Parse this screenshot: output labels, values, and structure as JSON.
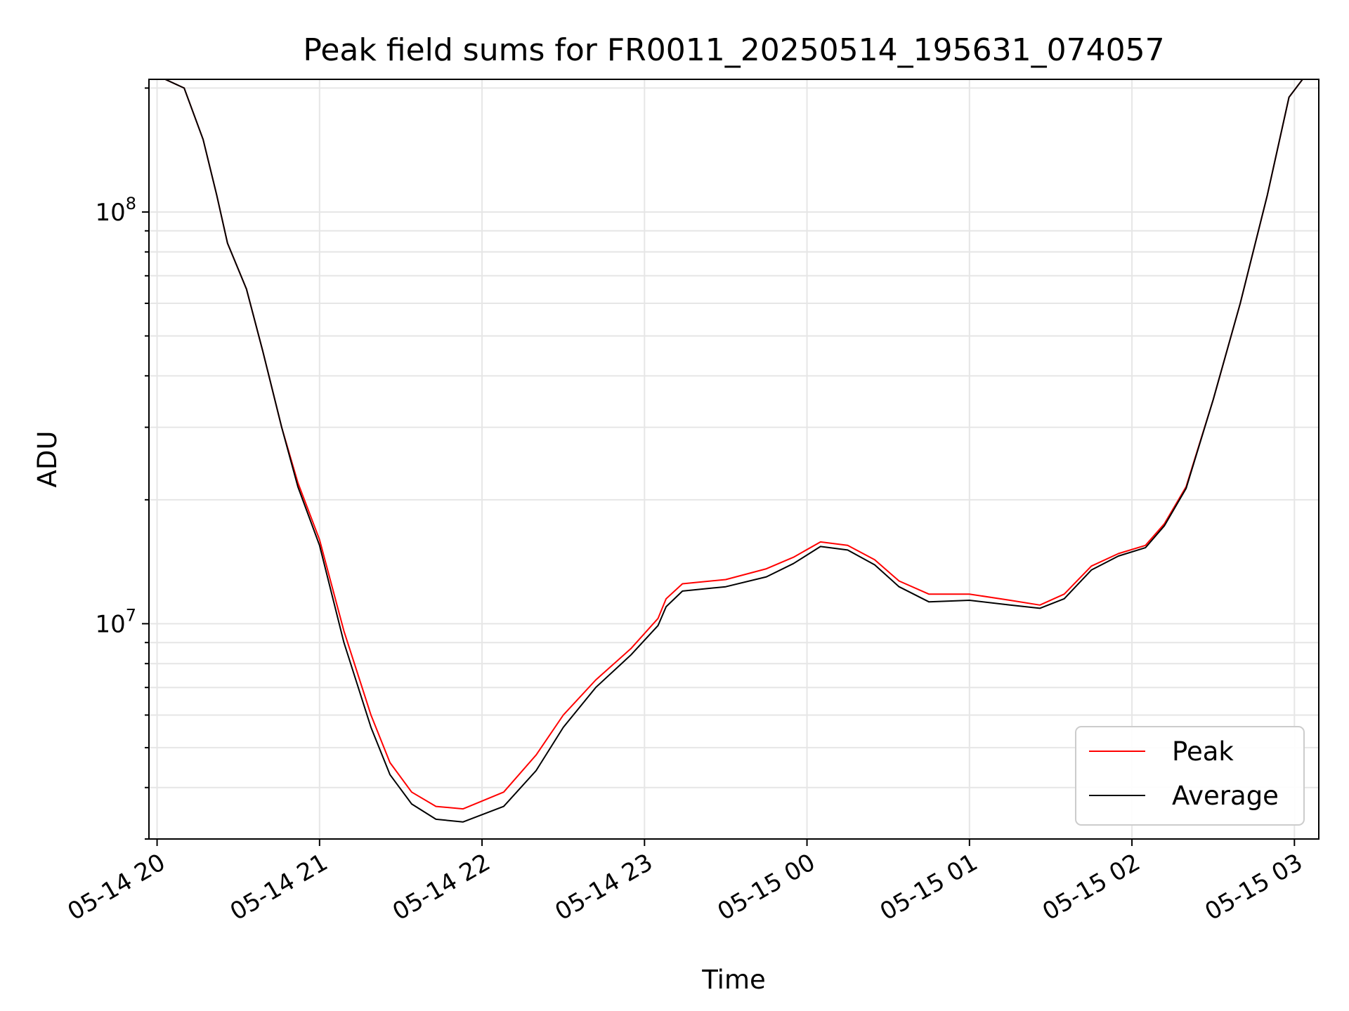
{
  "chart_data": {
    "type": "line",
    "title": "Peak field sums for FR0011_20250514_195631_074057",
    "xlabel": "Time",
    "ylabel": "ADU",
    "y_scale": "log",
    "ylim": [
      3000000,
      210000000
    ],
    "xlim": [
      "2025-05-14 19:57",
      "2025-05-15 03:09"
    ],
    "x_ticks": [
      "2025-05-14 20:00",
      "2025-05-14 21:00",
      "2025-05-14 22:00",
      "2025-05-14 23:00",
      "2025-05-15 00:00",
      "2025-05-15 01:00",
      "2025-05-15 02:00",
      "2025-05-15 03:00"
    ],
    "x_tick_labels": [
      "05-14 20",
      "05-14 21",
      "05-14 22",
      "05-14 23",
      "05-15 00",
      "05-15 01",
      "05-15 02",
      "05-15 03"
    ],
    "y_ticks": [
      10000000,
      100000000
    ],
    "y_tick_labels": [
      {
        "base": "10",
        "exp": "7"
      },
      {
        "base": "10",
        "exp": "8"
      }
    ],
    "grid": true,
    "legend_position": "lower right",
    "series": [
      {
        "name": "Peak",
        "color": "#ff0000",
        "x": [
          "2025-05-14 20:03",
          "2025-05-14 20:10",
          "2025-05-14 20:17",
          "2025-05-14 20:22",
          "2025-05-14 20:26",
          "2025-05-14 20:33",
          "2025-05-14 20:39",
          "2025-05-14 20:46",
          "2025-05-14 20:52",
          "2025-05-14 21:00",
          "2025-05-14 21:09",
          "2025-05-14 21:19",
          "2025-05-14 21:26",
          "2025-05-14 21:34",
          "2025-05-14 21:43",
          "2025-05-14 21:53",
          "2025-05-14 22:08",
          "2025-05-14 22:20",
          "2025-05-14 22:30",
          "2025-05-14 22:42",
          "2025-05-14 22:55",
          "2025-05-14 23:05",
          "2025-05-14 23:08",
          "2025-05-14 23:14",
          "2025-05-14 23:30",
          "2025-05-14 23:45",
          "2025-05-14 23:55",
          "2025-05-15 00:05",
          "2025-05-15 00:15",
          "2025-05-15 00:25",
          "2025-05-15 00:34",
          "2025-05-15 00:45",
          "2025-05-15 01:00",
          "2025-05-15 01:15",
          "2025-05-15 01:26",
          "2025-05-15 01:35",
          "2025-05-15 01:45",
          "2025-05-15 01:55",
          "2025-05-15 02:05",
          "2025-05-15 02:12",
          "2025-05-15 02:20",
          "2025-05-15 02:30",
          "2025-05-15 02:40",
          "2025-05-15 02:50",
          "2025-05-15 02:58",
          "2025-05-15 03:03"
        ],
        "values": [
          210000000,
          200000000,
          150000000,
          110000000,
          84000000,
          65000000,
          46000000,
          30000000,
          22000000,
          16000000,
          9600000,
          6000000,
          4600000,
          3900000,
          3600000,
          3550000,
          3900000,
          4800000,
          6000000,
          7300000,
          8700000,
          10300000,
          11500000,
          12500000,
          12800000,
          13600000,
          14500000,
          15800000,
          15500000,
          14300000,
          12700000,
          11800000,
          11800000,
          11400000,
          11100000,
          11800000,
          13800000,
          14800000,
          15500000,
          17500000,
          21500000,
          35000000,
          60000000,
          110000000,
          190000000,
          210000000
        ]
      },
      {
        "name": "Average",
        "color": "#000000",
        "x": [
          "2025-05-14 20:03",
          "2025-05-14 20:10",
          "2025-05-14 20:17",
          "2025-05-14 20:22",
          "2025-05-14 20:26",
          "2025-05-14 20:33",
          "2025-05-14 20:39",
          "2025-05-14 20:46",
          "2025-05-14 20:52",
          "2025-05-14 21:00",
          "2025-05-14 21:09",
          "2025-05-14 21:19",
          "2025-05-14 21:26",
          "2025-05-14 21:34",
          "2025-05-14 21:43",
          "2025-05-14 21:53",
          "2025-05-14 22:08",
          "2025-05-14 22:20",
          "2025-05-14 22:30",
          "2025-05-14 22:42",
          "2025-05-14 22:55",
          "2025-05-14 23:05",
          "2025-05-14 23:08",
          "2025-05-14 23:14",
          "2025-05-14 23:30",
          "2025-05-14 23:45",
          "2025-05-14 23:55",
          "2025-05-15 00:05",
          "2025-05-15 00:15",
          "2025-05-15 00:25",
          "2025-05-15 00:34",
          "2025-05-15 00:45",
          "2025-05-15 01:00",
          "2025-05-15 01:15",
          "2025-05-15 01:26",
          "2025-05-15 01:35",
          "2025-05-15 01:45",
          "2025-05-15 01:55",
          "2025-05-15 02:05",
          "2025-05-15 02:12",
          "2025-05-15 02:20",
          "2025-05-15 02:30",
          "2025-05-15 02:40",
          "2025-05-15 02:50",
          "2025-05-15 02:58",
          "2025-05-15 03:03"
        ],
        "values": [
          210000000,
          200000000,
          150000000,
          110000000,
          84000000,
          65000000,
          46000000,
          30000000,
          21500000,
          15500000,
          9000000,
          5600000,
          4300000,
          3650000,
          3350000,
          3300000,
          3600000,
          4400000,
          5600000,
          7000000,
          8400000,
          9900000,
          11000000,
          12000000,
          12300000,
          13000000,
          14000000,
          15400000,
          15100000,
          13900000,
          12300000,
          11300000,
          11400000,
          11100000,
          10900000,
          11500000,
          13500000,
          14600000,
          15300000,
          17300000,
          21300000,
          35000000,
          60000000,
          110000000,
          190000000,
          210000000
        ]
      }
    ]
  }
}
